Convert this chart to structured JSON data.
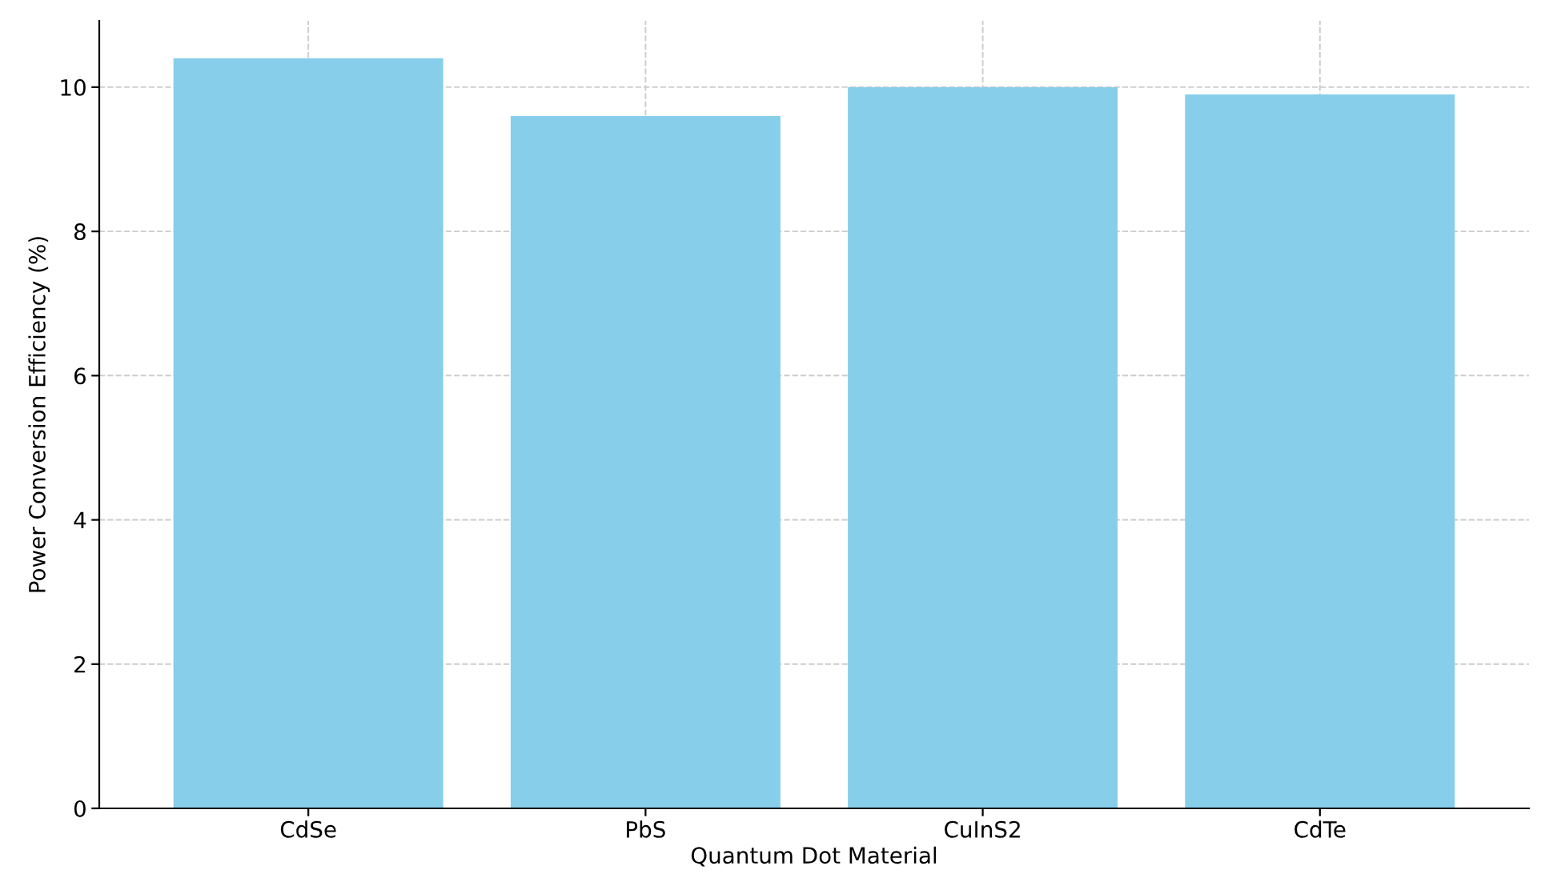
{
  "chart_data": {
    "type": "bar",
    "xlabel": "Quantum Dot Material",
    "ylabel": "Power Conversion Efficiency (%)",
    "categories": [
      "CdSe",
      "PbS",
      "CuInS2",
      "CdTe"
    ],
    "values": [
      10.4,
      9.6,
      10.0,
      9.9
    ],
    "color": "#87ceeb",
    "ylim": [
      0,
      10.92
    ],
    "yticks": [
      0,
      2,
      4,
      6,
      8,
      10
    ],
    "grid": true
  }
}
